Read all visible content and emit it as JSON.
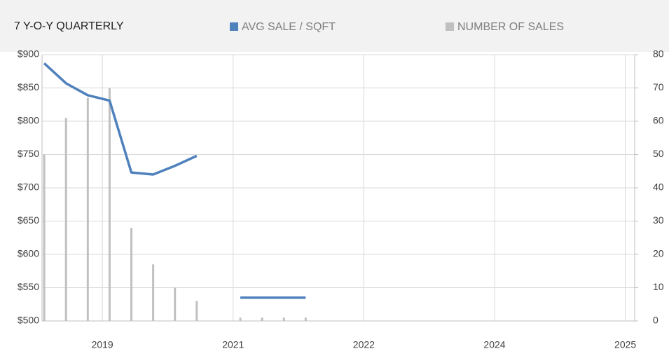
{
  "chart_data": {
    "type": "combo",
    "title": "7 Y-O-Y QUARTERLY",
    "x": [
      0,
      1,
      2,
      3,
      4,
      5,
      6,
      7,
      8,
      9,
      10,
      11,
      12
    ],
    "xlim": [
      -0.1,
      27.1
    ],
    "xticks": [
      {
        "value": 2.67,
        "label": "2019"
      },
      {
        "value": 8.67,
        "label": "2021"
      },
      {
        "value": 14.67,
        "label": "2022"
      },
      {
        "value": 20.67,
        "label": "2024"
      },
      {
        "value": 26.67,
        "label": "2025"
      }
    ],
    "ylim": [
      500,
      900
    ],
    "yticks": [
      {
        "value": 500,
        "label": "$500"
      },
      {
        "value": 550,
        "label": "$550"
      },
      {
        "value": 600,
        "label": "$600"
      },
      {
        "value": 650,
        "label": "$650"
      },
      {
        "value": 700,
        "label": "$700"
      },
      {
        "value": 750,
        "label": "$750"
      },
      {
        "value": 800,
        "label": "$800"
      },
      {
        "value": 850,
        "label": "$850"
      },
      {
        "value": 900,
        "label": "$900"
      }
    ],
    "y2lim": [
      0,
      80
    ],
    "y2ticks": [
      0,
      10,
      20,
      30,
      40,
      50,
      60,
      70,
      80
    ],
    "grid": true,
    "series": [
      {
        "name": "AVG SALE / SQFT",
        "type": "line",
        "color": "#4f81bd",
        "values": [
          887,
          857,
          839,
          831,
          723,
          720,
          733,
          748,
          null,
          535,
          535,
          535,
          535
        ]
      },
      {
        "name": "NUMBER OF SALES",
        "type": "bar",
        "axis": "y2",
        "color": "#c0c0c0",
        "values": [
          50,
          61,
          67,
          70,
          28,
          17,
          10,
          6,
          null,
          1,
          1,
          1,
          1
        ]
      }
    ]
  }
}
